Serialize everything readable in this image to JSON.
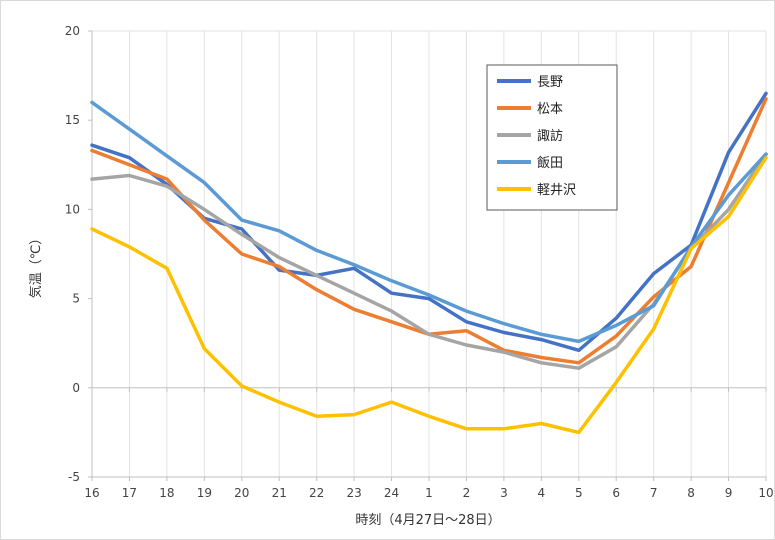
{
  "chart_data": {
    "type": "line",
    "title": "",
    "xlabel": "時刻（4月27日～28日）",
    "ylabel": "気温（℃）",
    "ylim": [
      -5,
      20
    ],
    "yticks": [
      -5,
      0,
      5,
      10,
      15,
      20
    ],
    "categories": [
      "16",
      "17",
      "18",
      "19",
      "20",
      "21",
      "22",
      "23",
      "24",
      "1",
      "2",
      "3",
      "4",
      "5",
      "6",
      "7",
      "8",
      "9",
      "10"
    ],
    "grid": "vertical",
    "legend_position": "top-right",
    "series": [
      {
        "name": "長野",
        "color": "#4472C4",
        "values": [
          13.6,
          12.9,
          11.4,
          9.5,
          8.9,
          6.6,
          6.3,
          6.7,
          5.3,
          5.0,
          3.7,
          3.1,
          2.7,
          2.1,
          3.9,
          6.4,
          8.0,
          13.2,
          16.5
        ]
      },
      {
        "name": "松本",
        "color": "#ED7D31",
        "values": [
          13.3,
          12.5,
          11.7,
          9.4,
          7.5,
          6.8,
          5.5,
          4.4,
          3.7,
          3.0,
          3.2,
          2.1,
          1.7,
          1.4,
          2.9,
          5.1,
          6.8,
          11.5,
          16.2
        ]
      },
      {
        "name": "諏訪",
        "color": "#A5A5A5",
        "values": [
          11.7,
          11.9,
          11.3,
          10.0,
          8.6,
          7.3,
          6.3,
          5.3,
          4.3,
          3.0,
          2.4,
          2.0,
          1.4,
          1.1,
          2.3,
          4.7,
          7.8,
          10.0,
          13.1
        ]
      },
      {
        "name": "飯田",
        "color": "#5B9BD5",
        "values": [
          16.0,
          14.5,
          13.0,
          11.5,
          9.4,
          8.8,
          7.7,
          6.9,
          6.0,
          5.2,
          4.3,
          3.6,
          3.0,
          2.6,
          3.5,
          4.6,
          7.9,
          10.8,
          13.1
        ]
      },
      {
        "name": "軽井沢",
        "color": "#FFC000",
        "values": [
          8.9,
          7.9,
          6.7,
          2.2,
          0.1,
          -0.8,
          -1.6,
          -1.5,
          -0.8,
          -1.6,
          -2.3,
          -2.3,
          -2.0,
          -2.5,
          0.3,
          3.3,
          7.8,
          9.6,
          12.9
        ]
      }
    ]
  }
}
